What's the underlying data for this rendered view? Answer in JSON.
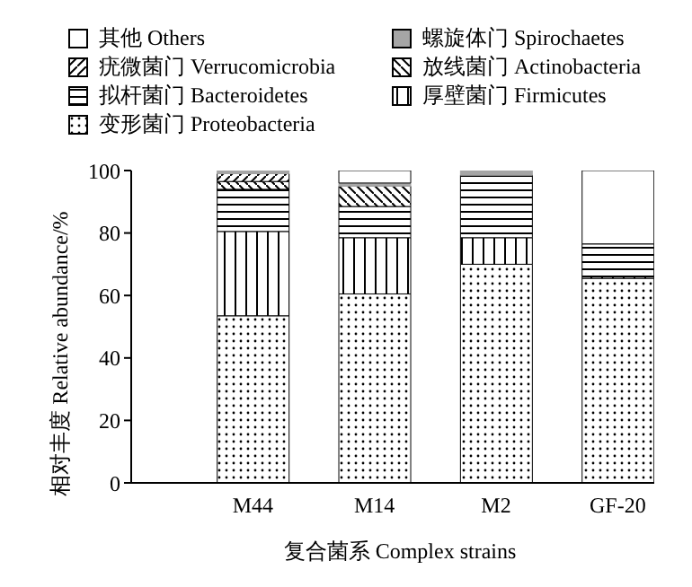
{
  "chart_data": {
    "type": "bar",
    "stacked": true,
    "xlabel": "复合菌系 Complex strains",
    "ylabel": "相对丰度 Relative abundance/%",
    "categories": [
      "M44",
      "M14",
      "M2",
      "GF-20"
    ],
    "series": [
      {
        "name": "变形菌门 Proteobacteria",
        "color": "#000000",
        "values": [
          53.5,
          60.5,
          70,
          65.5
        ]
      },
      {
        "name": "厚壁菌门 Firmicutes",
        "color": "#000000",
        "values": [
          27,
          18,
          8.5,
          0.5
        ]
      },
      {
        "name": "拟杆菌门 Bacteroidetes",
        "color": "#000000",
        "values": [
          13.5,
          10,
          20,
          10.5
        ]
      },
      {
        "name": "放线菌门 Actinobacteria",
        "color": "#000000",
        "values": [
          2.5,
          6.5,
          0,
          0
        ]
      },
      {
        "name": "疣微菌门 Verrucomicrobia",
        "color": "#000000",
        "values": [
          2.5,
          0,
          0,
          0
        ]
      },
      {
        "name": "螺旋体门 Spirochaetes",
        "color": "#a6a6a6",
        "values": [
          1,
          1,
          1.5,
          0
        ]
      },
      {
        "name": "其他 Others",
        "color": "#ffffff",
        "values": [
          0,
          4,
          0,
          23.5
        ]
      }
    ],
    "ylim": [
      0,
      100
    ],
    "yticks": [
      0,
      20,
      40,
      60,
      80,
      100
    ],
    "legend": "top"
  }
}
